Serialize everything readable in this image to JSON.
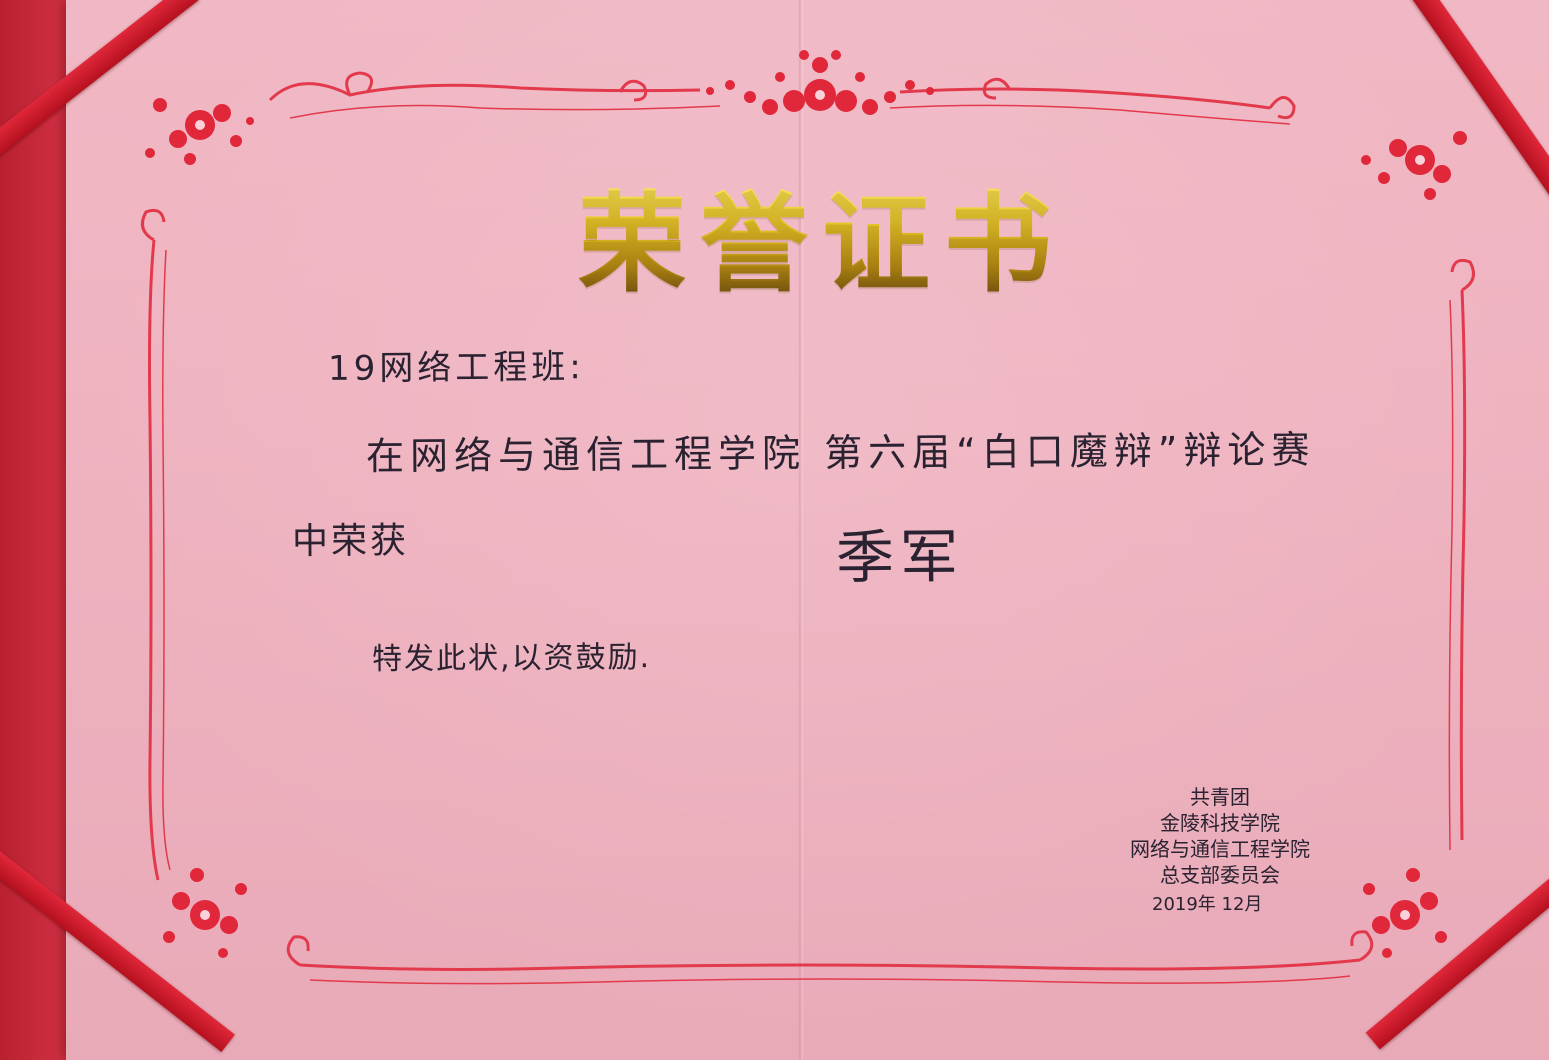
{
  "certificate": {
    "title": "荣誉证书",
    "recipient": "19网络工程班:",
    "event_line": "在网络与通信工程学院 第六届“白口魔辩”辩论赛",
    "award_prefix": "中荣获",
    "award": "季军",
    "closing": "特发此状,以资鼓励.",
    "issuer_lines": [
      "共青团",
      "金陵科技学院",
      "网络与通信工程学院",
      "总支部委员会"
    ],
    "date": "2019年 12月"
  },
  "colors": {
    "paper": "#efb3c0",
    "border": "#e0283a",
    "gold": "#d7b21f",
    "ribbon": "#d0202f",
    "ink": "#2a2230"
  }
}
